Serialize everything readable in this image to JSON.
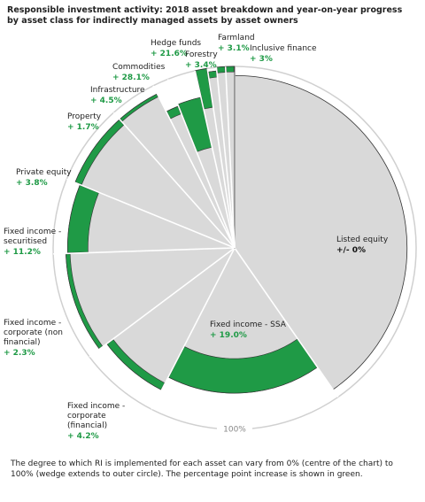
{
  "chart_data": {
    "type": "pie",
    "title": "Responsible investment activity: 2018 asset breakdown and year-on-year progress by asset class for indirectly managed assets by asset owners",
    "note": "The degree to which RI is implemented for each asset can vary from 0% (centre of the chart) to 100% (wedge extends to outer circle). The percentage point increase is shown in green.",
    "outer_label": "100%",
    "categories": [
      "Listed equity",
      "Fixed income - SSA",
      "Fixed income - corporate (financial)",
      "Fixed income - corporate (non financial)",
      "Fixed income - securitised",
      "Private equity",
      "Property",
      "Infrastructure",
      "Commodities",
      "Hedge funds",
      "Forestry",
      "Farmland",
      "Inclusive finance"
    ],
    "values": [
      40.3,
      17.2,
      7.2,
      9.7,
      6.7,
      7.2,
      4.2,
      1.4,
      2.5,
      1.1,
      0.8,
      0.8,
      0.8
    ],
    "levels": [
      95,
      80,
      88,
      93,
      92,
      95,
      95,
      84,
      85,
      100,
      98,
      100,
      100
    ],
    "color": "#d9d9d9",
    "changes": {
      "values": [
        0,
        19.0,
        4.2,
        2.3,
        11.2,
        3.8,
        1.7,
        4.5,
        28.1,
        21.6,
        3.4,
        3.1,
        3
      ],
      "value_labels": [
        "+/- 0%",
        "+ 19.0%",
        "+ 4.2%",
        "+ 2.3%",
        "+ 11.2%",
        "+ 3.8%",
        "+ 1.7%",
        "+ 4.5%",
        "+ 28.1%",
        "+ 21.6%",
        "+ 3.4%",
        "+ 3.1%",
        "+ 3%"
      ],
      "color": "#1f9a46"
    }
  }
}
